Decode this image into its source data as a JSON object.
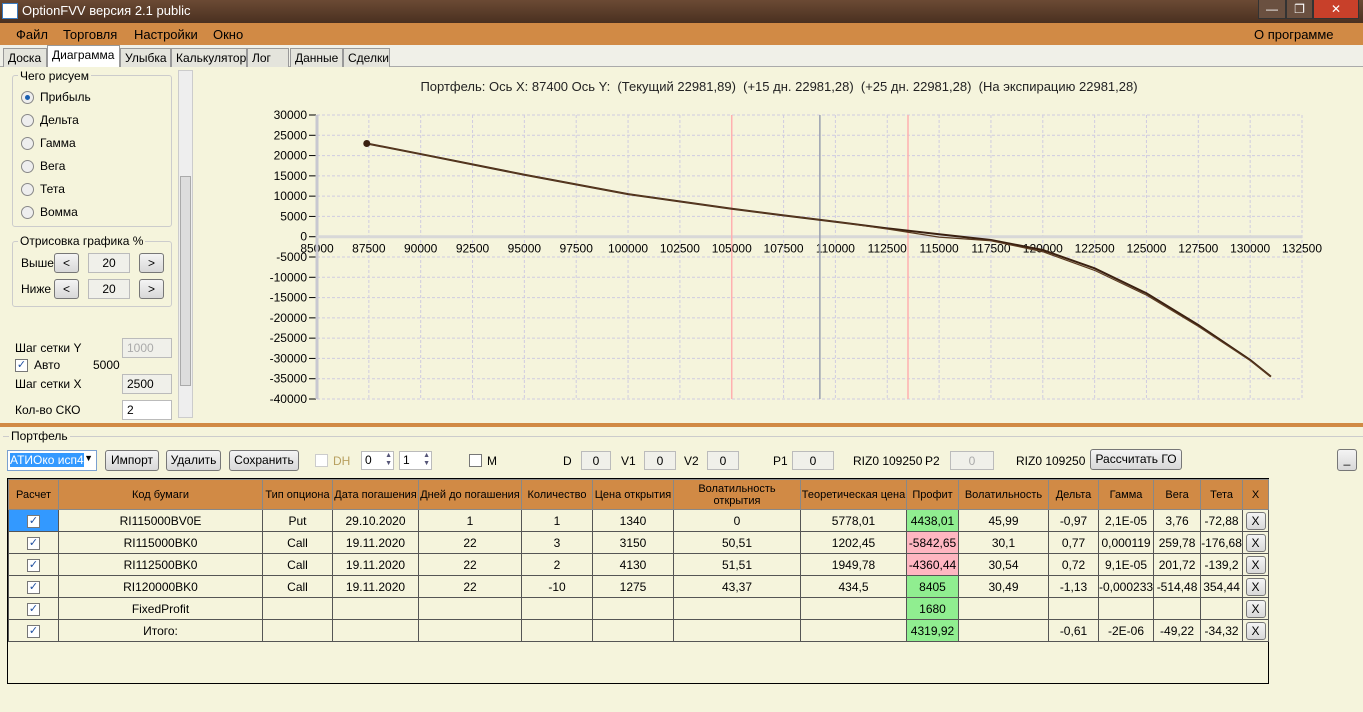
{
  "window": {
    "title": "OptionFVV версия 2.1 public",
    "controls": [
      "—",
      "❐",
      "✕"
    ]
  },
  "menu": {
    "items": [
      "Файл",
      "Торговля",
      "Настройки",
      "Окно"
    ],
    "about": "О программе"
  },
  "tabs": [
    "Доска",
    "Диаграмма",
    "Улыбка",
    "Калькулятор",
    "Лог",
    "Данные",
    "Сделки"
  ],
  "active_tab": "Диаграмма",
  "left": {
    "draw_group": "Чего рисуем",
    "options": [
      "Прибыль",
      "Дельта",
      "Гамма",
      "Вега",
      "Тета",
      "Вомма"
    ],
    "selected": "Прибыль",
    "render_group": "Отрисовка графика %",
    "above_label": "Выше",
    "above_value": "20",
    "below_label": "Ниже",
    "below_value": "20",
    "prev": "<",
    "next": ">",
    "grid_y_label": "Шаг сетки Y",
    "grid_y_value": "1000",
    "auto_label": "Авто",
    "auto_value": "5000",
    "grid_x_label": "Шаг сетки X",
    "grid_x_value": "2500",
    "sko_label": "Кол-во СКО",
    "sko_value": "2"
  },
  "chart_data": {
    "type": "line",
    "title": "Портфель: Ось X: 87400 Ось Y:  (Текущий 22981,89)  (+15 дн. 22981,28)  (+25 дн. 22981,28)  (На экспирацию 22981,28)",
    "xlim": [
      85000,
      132500
    ],
    "ylim": [
      -40000,
      30000
    ],
    "xticks": [
      85000,
      87500,
      90000,
      92500,
      95000,
      97500,
      100000,
      102500,
      105000,
      107500,
      110000,
      112500,
      115000,
      117500,
      120000,
      122500,
      125000,
      127500,
      130000,
      132500
    ],
    "yticks": [
      30000,
      25000,
      20000,
      15000,
      10000,
      5000,
      0,
      -5000,
      -10000,
      -15000,
      -20000,
      -25000,
      -30000,
      -35000,
      -40000
    ],
    "grid": true,
    "vlines": [
      {
        "x": 105000,
        "color": "#ffb0b0"
      },
      {
        "x": 109250,
        "color": "#9aa0b0"
      },
      {
        "x": 113500,
        "color": "#ffb0b0"
      }
    ],
    "marker": {
      "x": 87400,
      "y": 22981.89
    },
    "series": [
      {
        "color": "#3a2010",
        "x": [
          87400,
          90000,
          95000,
          100000,
          105000,
          107500,
          110000,
          112500,
          115000,
          117500,
          120000,
          122500,
          125000,
          127500,
          130000,
          131000
        ],
        "y": [
          22981,
          20370,
          15270,
          10500,
          6900,
          5270,
          3700,
          2070,
          600,
          -800,
          -3280,
          -7800,
          -13940,
          -21750,
          -30370,
          -34480
        ]
      },
      {
        "color": "#5a3a20",
        "x": [
          87400,
          90000,
          95000,
          100000,
          105000,
          107500,
          110000,
          112500,
          115000,
          117500,
          120000,
          122500,
          125000,
          127500,
          130000,
          131000
        ],
        "y": [
          22981,
          20370,
          15270,
          10500,
          6900,
          5270,
          3700,
          1900,
          -100,
          -1000,
          -3700,
          -8300,
          -14400,
          -22100,
          -30500,
          -34500
        ]
      }
    ]
  },
  "portfolio": {
    "group": "Портфель",
    "select_value": "АТИОко исп4",
    "import": "Импорт",
    "delete": "Удалить",
    "save": "Сохранить",
    "dh_label": "DH",
    "spin1": "0",
    "spin2": "1",
    "m_label": "M",
    "d_label": "D",
    "d_value": "0",
    "v1_label": "V1",
    "v1_value": "0",
    "v2_label": "V2",
    "v2_value": "0",
    "p1_label": "P1",
    "p1_value": "0",
    "p1_info": "RIZ0 109250",
    "p2_label": "P2",
    "p2_value": "0",
    "p2_info": "RIZ0 109250",
    "calc_go": "Рассчитать ГО",
    "minimize": "_"
  },
  "table": {
    "headers": [
      "Расчет",
      "Код бумаги",
      "Тип опциона",
      "Дата погашения",
      "Дней до погашения",
      "Количество",
      "Цена открытия",
      "Волатильность открытия",
      "Теоретическая цена",
      "Профит",
      "Волатильность",
      "Дельта",
      "Гамма",
      "Вега",
      "Тета",
      "X"
    ],
    "rows": [
      [
        "✓",
        "RI115000BV0E",
        "Put",
        "29.10.2020",
        "1",
        "1",
        "1340",
        "0",
        "5778,01",
        "4438,01",
        "45,99",
        "-0,97",
        "2,1E-05",
        "3,76",
        "-72,88",
        "X"
      ],
      [
        "✓",
        "RI115000BK0",
        "Call",
        "19.11.2020",
        "22",
        "3",
        "3150",
        "50,51",
        "1202,45",
        "-5842,65",
        "30,1",
        "0,77",
        "0,000119",
        "259,78",
        "-176,68",
        "X"
      ],
      [
        "✓",
        "RI112500BK0",
        "Call",
        "19.11.2020",
        "22",
        "2",
        "4130",
        "51,51",
        "1949,78",
        "-4360,44",
        "30,54",
        "0,72",
        "9,1E-05",
        "201,72",
        "-139,2",
        "X"
      ],
      [
        "✓",
        "RI120000BK0",
        "Call",
        "19.11.2020",
        "22",
        "-10",
        "1275",
        "43,37",
        "434,5",
        "8405",
        "30,49",
        "-1,13",
        "-0,000233",
        "-514,48",
        "354,44",
        "X"
      ],
      [
        "✓",
        "FixedProfit",
        "",
        "",
        "",
        "",
        "",
        "",
        "",
        "1680",
        "",
        "",
        "",
        "",
        "",
        "X"
      ],
      [
        "✓",
        "Итого:",
        "",
        "",
        "",
        "",
        "",
        "",
        "",
        "4319,92",
        "",
        "-0,61",
        "-2E-06",
        "-49,22",
        "-34,32",
        "X"
      ]
    ],
    "profit_colors": [
      "#90ee90",
      "#ffb6c1",
      "#ffb6c1",
      "#90ee90",
      "#90ee90",
      "#90ee90"
    ]
  }
}
